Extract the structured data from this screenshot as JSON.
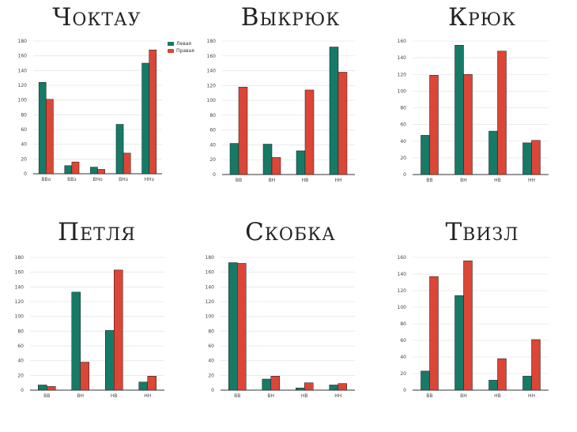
{
  "colors": {
    "left": "#167A66",
    "right": "#DB4637",
    "grid": "#e6e6e6",
    "axis": "#333333",
    "text": "#444444"
  },
  "legend": {
    "left_label": "Левая",
    "right_label": "Правая"
  },
  "chart_data": [
    {
      "type": "bar",
      "title": "Чоктау",
      "categories": [
        "ВВо",
        "ВВз",
        "ВНо",
        "ВНз",
        "ННз"
      ],
      "series": [
        {
          "name": "Левая",
          "values": [
            124,
            11,
            9,
            67,
            150
          ]
        },
        {
          "name": "Правая",
          "values": [
            101,
            16,
            6,
            28,
            168
          ]
        }
      ],
      "ylim": [
        0,
        180
      ],
      "yticks": [
        0,
        20,
        40,
        60,
        80,
        100,
        120,
        140,
        160,
        180
      ],
      "legend": "top-right"
    },
    {
      "type": "bar",
      "title": "Выкрюк",
      "categories": [
        "ВВ",
        "ВН",
        "НВ",
        "НН"
      ],
      "series": [
        {
          "name": "Левая",
          "values": [
            42,
            41,
            32,
            172
          ]
        },
        {
          "name": "Правая",
          "values": [
            118,
            23,
            114,
            138
          ]
        }
      ],
      "ylim": [
        0,
        180
      ],
      "yticks": [
        0,
        20,
        40,
        60,
        80,
        100,
        120,
        140,
        160,
        180
      ]
    },
    {
      "type": "bar",
      "title": "Крюк",
      "categories": [
        "ВВ",
        "ВН",
        "НВ",
        "НН"
      ],
      "series": [
        {
          "name": "Левая",
          "values": [
            47,
            155,
            52,
            38
          ]
        },
        {
          "name": "Правая",
          "values": [
            119,
            120,
            148,
            41
          ]
        }
      ],
      "ylim": [
        0,
        160
      ],
      "yticks": [
        0,
        20,
        40,
        60,
        80,
        100,
        120,
        140,
        160
      ]
    },
    {
      "type": "bar",
      "title": "Петля",
      "categories": [
        "ВВ",
        "ВН",
        "НВ",
        "НН"
      ],
      "series": [
        {
          "name": "Левая",
          "values": [
            7,
            133,
            81,
            11
          ]
        },
        {
          "name": "Правая",
          "values": [
            5,
            38,
            163,
            19
          ]
        }
      ],
      "ylim": [
        0,
        180
      ],
      "yticks": [
        0,
        20,
        40,
        60,
        80,
        100,
        120,
        140,
        160,
        180
      ]
    },
    {
      "type": "bar",
      "title": "Скобка",
      "categories": [
        "ВВ",
        "ВН",
        "НВ",
        "НН"
      ],
      "series": [
        {
          "name": "Левая",
          "values": [
            173,
            15,
            3,
            7
          ]
        },
        {
          "name": "Правая",
          "values": [
            172,
            19,
            10,
            9
          ]
        }
      ],
      "ylim": [
        0,
        180
      ],
      "yticks": [
        0,
        20,
        40,
        60,
        80,
        100,
        120,
        140,
        160,
        180
      ]
    },
    {
      "type": "bar",
      "title": "Твизл",
      "categories": [
        "ВВ",
        "ВН",
        "НВ",
        "НН"
      ],
      "series": [
        {
          "name": "Левая",
          "values": [
            23,
            114,
            12,
            17
          ]
        },
        {
          "name": "Правая",
          "values": [
            137,
            156,
            38,
            61
          ]
        }
      ],
      "ylim": [
        0,
        160
      ],
      "yticks": [
        0,
        20,
        40,
        60,
        80,
        100,
        120,
        140,
        160
      ]
    }
  ]
}
